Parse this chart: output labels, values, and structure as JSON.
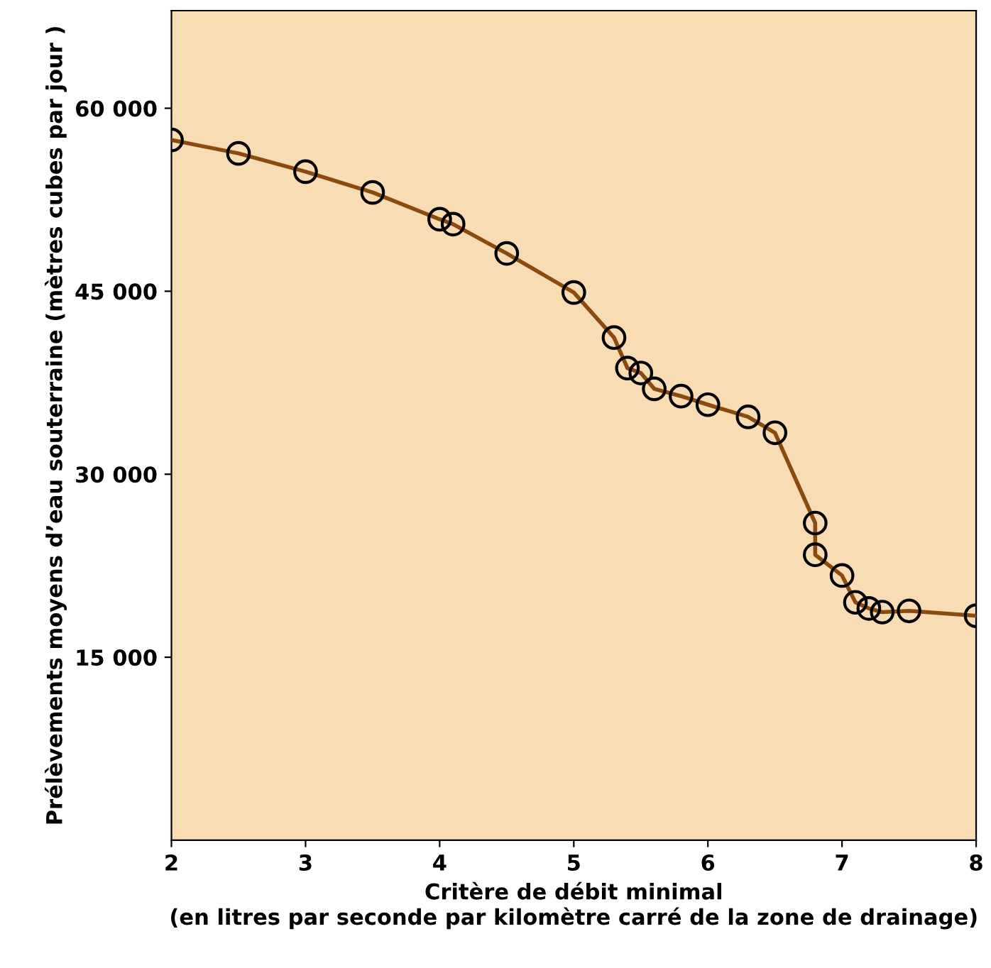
{
  "chart_data": {
    "type": "line",
    "xlabel": "Critère de débit minimal\n(en litres par seconde par kilomètre carré de la zone de drainage)",
    "ylabel": "Prélèvements moyens d’eau souterraine (mètres cubes par jour )",
    "x": [
      2,
      2.5,
      3,
      3.5,
      4,
      4.1,
      4.5,
      5,
      5.3,
      5.4,
      5.5,
      5.6,
      5.8,
      6,
      6.3,
      6.5,
      6.8,
      6.8,
      7,
      7.1,
      7.2,
      7.3,
      7.5,
      8
    ],
    "series": [
      {
        "color": "#8b4a0e",
        "values": [
          57400,
          56300,
          54800,
          53100,
          50900,
          50500,
          48100,
          44900,
          41200,
          38700,
          38300,
          37000,
          36400,
          35700,
          34700,
          33400,
          26000,
          23400,
          21700,
          19500,
          19000,
          18700,
          18800,
          18400
        ]
      }
    ],
    "xlim": [
      2,
      8
    ],
    "ylim": [
      0,
      68000
    ],
    "xticks": [
      2,
      3,
      4,
      5,
      6,
      7,
      8
    ],
    "yticks": [
      {
        "value": 15000,
        "label": "15 000"
      },
      {
        "value": 30000,
        "label": "30 000"
      },
      {
        "value": 45000,
        "label": "45 000"
      },
      {
        "value": 60000,
        "label": "60 000"
      }
    ],
    "marker": "circle",
    "line_style": "solid",
    "grid": false
  }
}
